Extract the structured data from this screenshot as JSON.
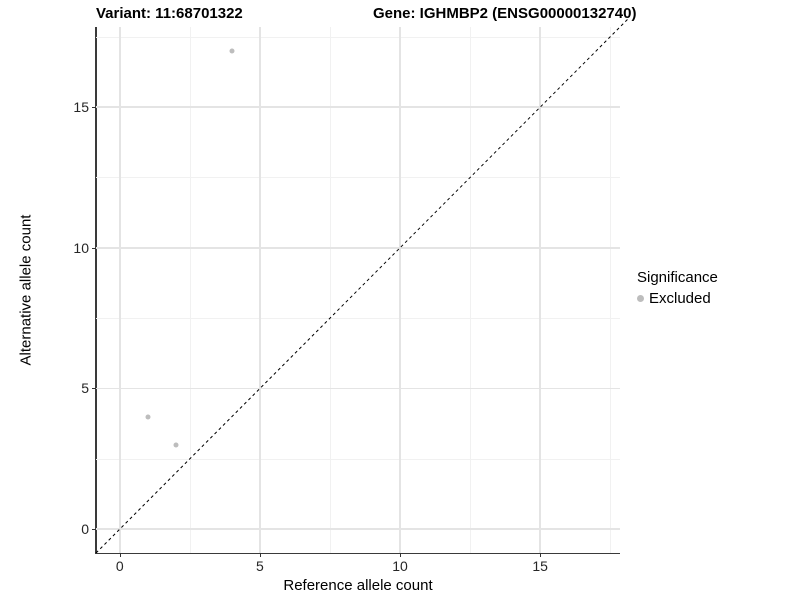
{
  "chart_data": {
    "type": "scatter",
    "title_left": "Variant: 11:68701322",
    "title_right": "Gene: IGHMBP2 (ENSG00000132740)",
    "xlabel": "Reference allele count",
    "ylabel": "Alternative allele count",
    "xlim": [
      -0.85,
      17.85
    ],
    "ylim": [
      -0.85,
      17.85
    ],
    "x_ticks": [
      0,
      5,
      10,
      15
    ],
    "y_ticks": [
      0,
      5,
      10,
      15
    ],
    "x_minor_ticks": [
      2.5,
      7.5,
      12.5,
      17.5
    ],
    "y_minor_ticks": [
      2.5,
      7.5,
      12.5,
      17.5
    ],
    "grid": true,
    "legend": {
      "title": "Significance",
      "position": "right",
      "items": [
        {
          "label": "Excluded",
          "color": "#bdbdbd"
        }
      ]
    },
    "series": [
      {
        "name": "Excluded",
        "color": "#bdbdbd",
        "points": [
          [
            1,
            4
          ],
          [
            2,
            3
          ],
          [
            4,
            17
          ]
        ]
      }
    ],
    "reference_line": {
      "type": "y=x",
      "style": "dashed",
      "color": "#000000"
    }
  },
  "colors": {
    "grid_major": "#e4e4e4",
    "grid_minor": "#f1f1f1",
    "axis_line": "#3a3a3a"
  }
}
